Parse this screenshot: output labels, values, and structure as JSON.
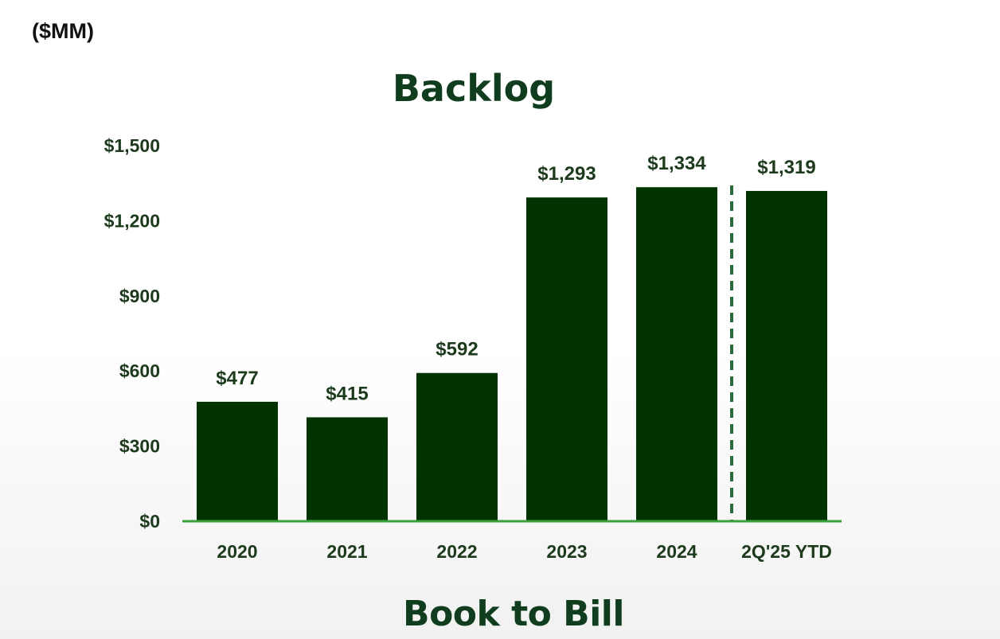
{
  "unit_label": "($MM)",
  "next_section_title": "Book to Bill",
  "colors": {
    "bar": "#003300",
    "axis": "#3aa03a",
    "text": "#1d3a1d",
    "title": "#0f3d1d",
    "separator": "#2d6b3d"
  },
  "chart_data": {
    "type": "bar",
    "title": "Backlog",
    "xlabel": "",
    "ylabel": "",
    "categories": [
      "2020",
      "2021",
      "2022",
      "2023",
      "2024",
      "2Q'25 YTD"
    ],
    "values": [
      477,
      415,
      592,
      1293,
      1334,
      1319
    ],
    "value_labels": [
      "$477",
      "$415",
      "$592",
      "$1,293",
      "$1,334",
      "$1,319"
    ],
    "ylim": [
      0,
      1500
    ],
    "yticks": [
      0,
      300,
      600,
      900,
      1200,
      1500
    ],
    "ytick_labels": [
      "$0",
      "$300",
      "$600",
      "$900",
      "$1,200",
      "$1,500"
    ],
    "grid": false,
    "legend": "none",
    "separator_after_category": "2024"
  }
}
